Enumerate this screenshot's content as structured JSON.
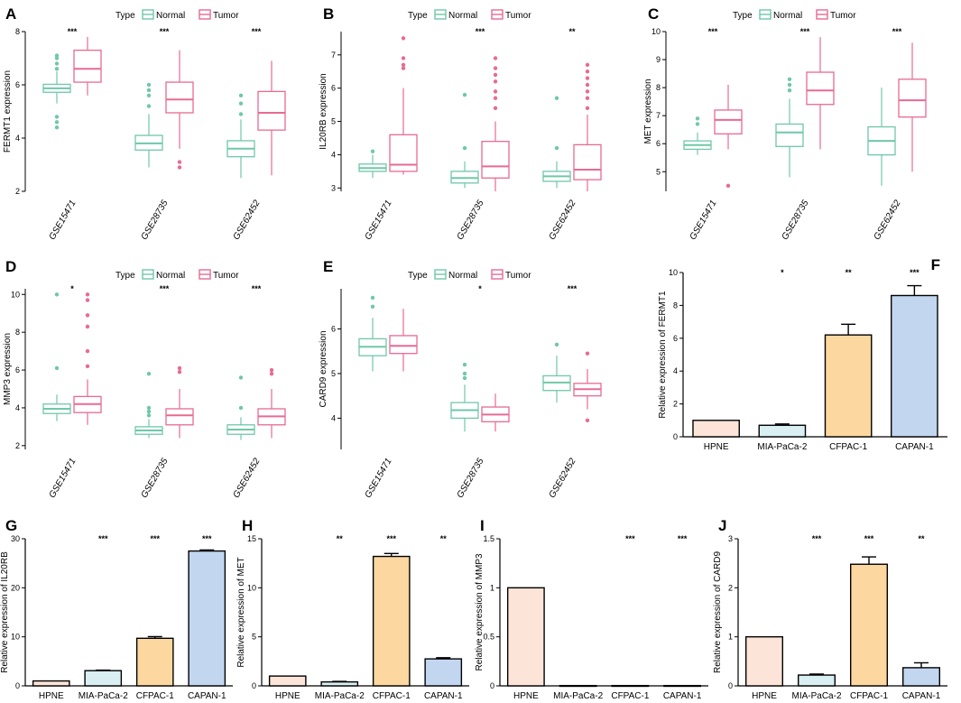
{
  "colors": {
    "normal": "#6fc8a8",
    "tumor": "#e86a92",
    "bars": [
      "#fde4d8",
      "#d9eff2",
      "#fcd7a0",
      "#c3d6f0"
    ],
    "axis": "#000000"
  },
  "chart_data": [
    {
      "panel": "A",
      "type": "box",
      "legend": {
        "title": "Type",
        "items": [
          "Normal",
          "Tumor"
        ]
      },
      "ylabel": "FERMT1 expression",
      "ylim": [
        2,
        8
      ],
      "yticks": [
        2,
        4,
        6,
        8
      ],
      "categories": [
        "GSE15471",
        "GSE28735",
        "GSE62452"
      ],
      "significance": [
        "***",
        "***",
        "***"
      ],
      "series": [
        {
          "name": "Normal",
          "boxes": [
            {
              "wlo": 5.3,
              "q1": 5.72,
              "med": 5.87,
              "q3": 6.02,
              "whi": 6.5,
              "out": [
                6.6,
                6.8,
                7.0,
                7.1,
                4.8,
                4.6,
                4.4
              ]
            },
            {
              "wlo": 2.9,
              "q1": 3.55,
              "med": 3.8,
              "q3": 4.1,
              "whi": 4.9,
              "out": [
                5.2,
                5.6,
                5.8,
                6.0
              ]
            },
            {
              "wlo": 2.5,
              "q1": 3.3,
              "med": 3.6,
              "q3": 3.9,
              "whi": 4.7,
              "out": [
                4.9,
                5.3,
                5.6
              ]
            }
          ]
        },
        {
          "name": "Tumor",
          "boxes": [
            {
              "wlo": 5.6,
              "q1": 6.1,
              "med": 6.6,
              "q3": 7.3,
              "whi": 7.8,
              "out": []
            },
            {
              "wlo": 3.6,
              "q1": 4.95,
              "med": 5.45,
              "q3": 6.1,
              "whi": 7.3,
              "out": [
                3.1,
                2.9
              ]
            },
            {
              "wlo": 2.6,
              "q1": 4.3,
              "med": 4.95,
              "q3": 5.75,
              "whi": 6.9,
              "out": []
            }
          ]
        }
      ]
    },
    {
      "panel": "B",
      "type": "box",
      "legend": {
        "title": "Type",
        "items": [
          "Normal",
          "Tumor"
        ]
      },
      "ylabel": "IL20RB expression",
      "ylim": [
        2.9,
        7.7
      ],
      "yticks": [
        3,
        4,
        5,
        6,
        7
      ],
      "categories": [
        "GSE15471",
        "GSE28735",
        "GSE62452"
      ],
      "significance": [
        "",
        "***",
        "**"
      ],
      "series": [
        {
          "name": "Normal",
          "boxes": [
            {
              "wlo": 3.3,
              "q1": 3.5,
              "med": 3.6,
              "q3": 3.72,
              "whi": 4.0,
              "out": [
                4.1
              ]
            },
            {
              "wlo": 3.0,
              "q1": 3.15,
              "med": 3.3,
              "q3": 3.5,
              "whi": 3.8,
              "out": [
                4.2,
                5.8
              ]
            },
            {
              "wlo": 3.0,
              "q1": 3.2,
              "med": 3.35,
              "q3": 3.5,
              "whi": 3.8,
              "out": [
                4.2,
                5.7
              ]
            }
          ]
        },
        {
          "name": "Tumor",
          "boxes": [
            {
              "wlo": 3.4,
              "q1": 3.5,
              "med": 3.7,
              "q3": 4.6,
              "whi": 6.0,
              "out": [
                6.6,
                6.7,
                6.9,
                7.5
              ]
            },
            {
              "wlo": 2.9,
              "q1": 3.3,
              "med": 3.65,
              "q3": 4.4,
              "whi": 5.0,
              "out": [
                5.4,
                5.7,
                5.9,
                6.2,
                6.4,
                6.6,
                6.9
              ]
            },
            {
              "wlo": 2.9,
              "q1": 3.25,
              "med": 3.55,
              "q3": 4.3,
              "whi": 5.2,
              "out": [
                5.4,
                5.7,
                5.9,
                6.1,
                6.3,
                6.5,
                6.7
              ]
            }
          ]
        }
      ]
    },
    {
      "panel": "C",
      "type": "box",
      "legend": {
        "title": "Type",
        "items": [
          "Normal",
          "Tumor"
        ]
      },
      "ylabel": "MET expression",
      "ylim": [
        4.3,
        10
      ],
      "yticks": [
        5,
        6,
        7,
        8,
        9,
        10
      ],
      "categories": [
        "GSE15471",
        "GSE28735",
        "GSE62452"
      ],
      "significance": [
        "***",
        "***",
        "***"
      ],
      "series": [
        {
          "name": "Normal",
          "boxes": [
            {
              "wlo": 5.6,
              "q1": 5.8,
              "med": 5.95,
              "q3": 6.1,
              "whi": 6.4,
              "out": [
                6.7,
                6.9
              ]
            },
            {
              "wlo": 4.8,
              "q1": 5.9,
              "med": 6.4,
              "q3": 6.7,
              "whi": 7.6,
              "out": [
                7.9,
                8.1,
                8.3
              ]
            },
            {
              "wlo": 4.5,
              "q1": 5.6,
              "med": 6.1,
              "q3": 6.6,
              "whi": 8.0,
              "out": []
            }
          ]
        },
        {
          "name": "Tumor",
          "boxes": [
            {
              "wlo": 5.8,
              "q1": 6.35,
              "med": 6.85,
              "q3": 7.2,
              "whi": 8.1,
              "out": [
                4.5
              ]
            },
            {
              "wlo": 5.8,
              "q1": 7.4,
              "med": 7.9,
              "q3": 8.55,
              "whi": 9.8,
              "out": []
            },
            {
              "wlo": 5.0,
              "q1": 6.95,
              "med": 7.55,
              "q3": 8.3,
              "whi": 9.6,
              "out": []
            }
          ]
        }
      ]
    },
    {
      "panel": "D",
      "type": "box",
      "legend": {
        "title": "Type",
        "items": [
          "Normal",
          "Tumor"
        ]
      },
      "ylabel": "MMP3 expression",
      "ylim": [
        1.8,
        10.3
      ],
      "yticks": [
        2,
        4,
        6,
        8,
        10
      ],
      "categories": [
        "GSE15471",
        "GSE28735",
        "GSE62452"
      ],
      "significance": [
        "*",
        "***",
        "***"
      ],
      "series": [
        {
          "name": "Normal",
          "boxes": [
            {
              "wlo": 3.3,
              "q1": 3.7,
              "med": 3.95,
              "q3": 4.2,
              "whi": 4.7,
              "out": [
                6.1,
                10.0
              ]
            },
            {
              "wlo": 2.4,
              "q1": 2.6,
              "med": 2.8,
              "q3": 3.0,
              "whi": 3.4,
              "out": [
                3.6,
                3.8,
                4.0,
                5.8
              ]
            },
            {
              "wlo": 2.3,
              "q1": 2.6,
              "med": 2.85,
              "q3": 3.1,
              "whi": 3.5,
              "out": [
                4.0,
                5.6
              ]
            }
          ]
        },
        {
          "name": "Tumor",
          "boxes": [
            {
              "wlo": 3.1,
              "q1": 3.75,
              "med": 4.2,
              "q3": 4.6,
              "whi": 5.5,
              "out": [
                6.2,
                7.0,
                8.3,
                8.9,
                9.7,
                10.0
              ]
            },
            {
              "wlo": 2.4,
              "q1": 3.1,
              "med": 3.6,
              "q3": 3.95,
              "whi": 5.0,
              "out": [
                5.9,
                6.1
              ]
            },
            {
              "wlo": 2.4,
              "q1": 3.1,
              "med": 3.55,
              "q3": 3.95,
              "whi": 5.0,
              "out": [
                5.8,
                6.0
              ]
            }
          ]
        }
      ]
    },
    {
      "panel": "E",
      "type": "box",
      "legend": {
        "title": "Type",
        "items": [
          "Normal",
          "Tumor"
        ]
      },
      "ylabel": "CARD9 expression",
      "ylim": [
        3.3,
        6.9
      ],
      "yticks": [
        4,
        5,
        6
      ],
      "categories": [
        "GSE15471",
        "GSE28735",
        "GSE62452"
      ],
      "significance": [
        "",
        "*",
        "***"
      ],
      "series": [
        {
          "name": "Normal",
          "boxes": [
            {
              "wlo": 5.05,
              "q1": 5.4,
              "med": 5.6,
              "q3": 5.78,
              "whi": 6.25,
              "out": [
                6.5,
                6.7
              ]
            },
            {
              "wlo": 3.7,
              "q1": 4.0,
              "med": 4.18,
              "q3": 4.35,
              "whi": 4.75,
              "out": [
                4.9,
                5.0,
                5.2
              ]
            },
            {
              "wlo": 4.35,
              "q1": 4.62,
              "med": 4.8,
              "q3": 4.95,
              "whi": 5.4,
              "out": [
                5.65
              ]
            }
          ]
        },
        {
          "name": "Tumor",
          "boxes": [
            {
              "wlo": 5.05,
              "q1": 5.45,
              "med": 5.62,
              "q3": 5.85,
              "whi": 6.45,
              "out": []
            },
            {
              "wlo": 3.7,
              "q1": 3.92,
              "med": 4.08,
              "q3": 4.25,
              "whi": 4.55,
              "out": []
            },
            {
              "wlo": 4.2,
              "q1": 4.5,
              "med": 4.65,
              "q3": 4.78,
              "whi": 5.1,
              "out": [
                3.95,
                5.45
              ]
            }
          ]
        }
      ]
    },
    {
      "panel": "F",
      "type": "bar",
      "ylabel": "Relative expression of FERMT1",
      "ylim": [
        0,
        10
      ],
      "yticks": [
        0,
        2,
        4,
        6,
        8,
        10
      ],
      "ytick_labels": [
        "0",
        "2",
        "4",
        "6",
        "8",
        "10"
      ],
      "categories": [
        "HPNE",
        "MIA-PaCa-2",
        "CFPAC-1",
        "CAPAN-1"
      ],
      "values": [
        1.0,
        0.7,
        6.2,
        8.6
      ],
      "errors": [
        0,
        0.08,
        0.65,
        0.6
      ],
      "significance": [
        "",
        "*",
        "**",
        "***"
      ]
    },
    {
      "panel": "G",
      "type": "bar",
      "ylabel": "Relative expression of IL20RB",
      "ylim": [
        0,
        30
      ],
      "yticks": [
        0,
        10,
        20,
        30
      ],
      "ytick_labels": [
        "0",
        "10",
        "20",
        "30"
      ],
      "categories": [
        "HPNE",
        "MIA-PaCa-2",
        "CFPAC-1",
        "CAPAN-1"
      ],
      "values": [
        1.0,
        3.1,
        9.7,
        27.5
      ],
      "errors": [
        0,
        0.1,
        0.35,
        0.2
      ],
      "significance": [
        "",
        "***",
        "***",
        "***"
      ]
    },
    {
      "panel": "H",
      "type": "bar",
      "ylabel": "Relative expression of MET",
      "ylim": [
        0,
        15
      ],
      "yticks": [
        0,
        5,
        10,
        15
      ],
      "ytick_labels": [
        "0",
        "5",
        "10",
        "15"
      ],
      "categories": [
        "HPNE",
        "MIA-PaCa-2",
        "CFPAC-1",
        "CAPAN-1"
      ],
      "values": [
        1.0,
        0.4,
        13.2,
        2.75
      ],
      "errors": [
        0,
        0.05,
        0.3,
        0.12
      ],
      "significance": [
        "",
        "**",
        "***",
        "**"
      ]
    },
    {
      "panel": "I",
      "type": "bar",
      "ylabel": "Relative expression of MMP3",
      "ylim": [
        0,
        1.5
      ],
      "yticks": [
        0,
        0.5,
        1,
        1.5
      ],
      "ytick_labels": [
        "0",
        "0.5",
        "1",
        "1.5"
      ],
      "categories": [
        "HPNE",
        "MIA-PaCa-2",
        "CFPAC-1",
        "CAPAN-1"
      ],
      "values": [
        1.0,
        0.003,
        0.003,
        0.003
      ],
      "errors": [
        0,
        0,
        0,
        0
      ],
      "significance": [
        "",
        "",
        "***",
        "***"
      ]
    },
    {
      "panel": "J",
      "type": "bar",
      "ylabel": "Relative expression of CARD9",
      "ylim": [
        0,
        3
      ],
      "yticks": [
        0,
        1,
        2,
        3
      ],
      "ytick_labels": [
        "0",
        "1",
        "2",
        "3"
      ],
      "categories": [
        "HPNE",
        "MIA-PaCa-2",
        "CFPAC-1",
        "CAPAN-1"
      ],
      "values": [
        1.0,
        0.22,
        2.48,
        0.37
      ],
      "errors": [
        0,
        0.02,
        0.15,
        0.1
      ],
      "significance": [
        "",
        "***",
        "***",
        "**"
      ]
    }
  ]
}
